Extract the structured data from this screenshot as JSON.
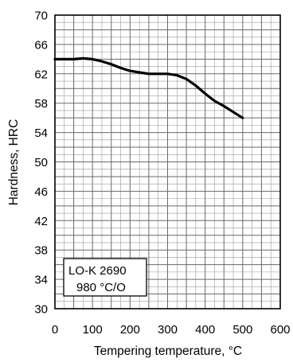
{
  "chart_data": {
    "type": "line",
    "title": "",
    "xlabel": "Tempering temperature, °C",
    "ylabel": "Hardness, HRC",
    "xlim": [
      0,
      600
    ],
    "ylim": [
      30,
      70
    ],
    "x_ticks": [
      0,
      100,
      200,
      300,
      400,
      500,
      600
    ],
    "y_ticks": [
      30,
      34,
      38,
      42,
      46,
      50,
      54,
      58,
      62,
      66,
      70
    ],
    "x_tick_labels": [
      "0",
      "100",
      "200",
      "300",
      "400",
      "500",
      "600"
    ],
    "y_tick_labels": [
      "30",
      "34",
      "38",
      "42",
      "46",
      "50",
      "54",
      "58",
      "62",
      "66",
      "70"
    ],
    "grid": true,
    "legend": {
      "placement": "bottom-left",
      "lines": [
        "LO-K 2690",
        "980 °C/O"
      ]
    },
    "series": [
      {
        "x": [
          0,
          25,
          50,
          75,
          100,
          125,
          150,
          175,
          200,
          225,
          250,
          275,
          300,
          325,
          350,
          375,
          400,
          425,
          450,
          475,
          500
        ],
        "values": [
          64.0,
          64.0,
          64.0,
          64.1,
          64.0,
          63.7,
          63.3,
          62.8,
          62.4,
          62.2,
          62.0,
          62.0,
          62.0,
          61.8,
          61.3,
          60.4,
          59.3,
          58.3,
          57.6,
          56.8,
          56.0
        ]
      }
    ],
    "colors": {
      "line": "#000000",
      "grid_major": "#6a6a6a",
      "grid_minor": "#9a9a9a",
      "frame": "#000000"
    }
  }
}
